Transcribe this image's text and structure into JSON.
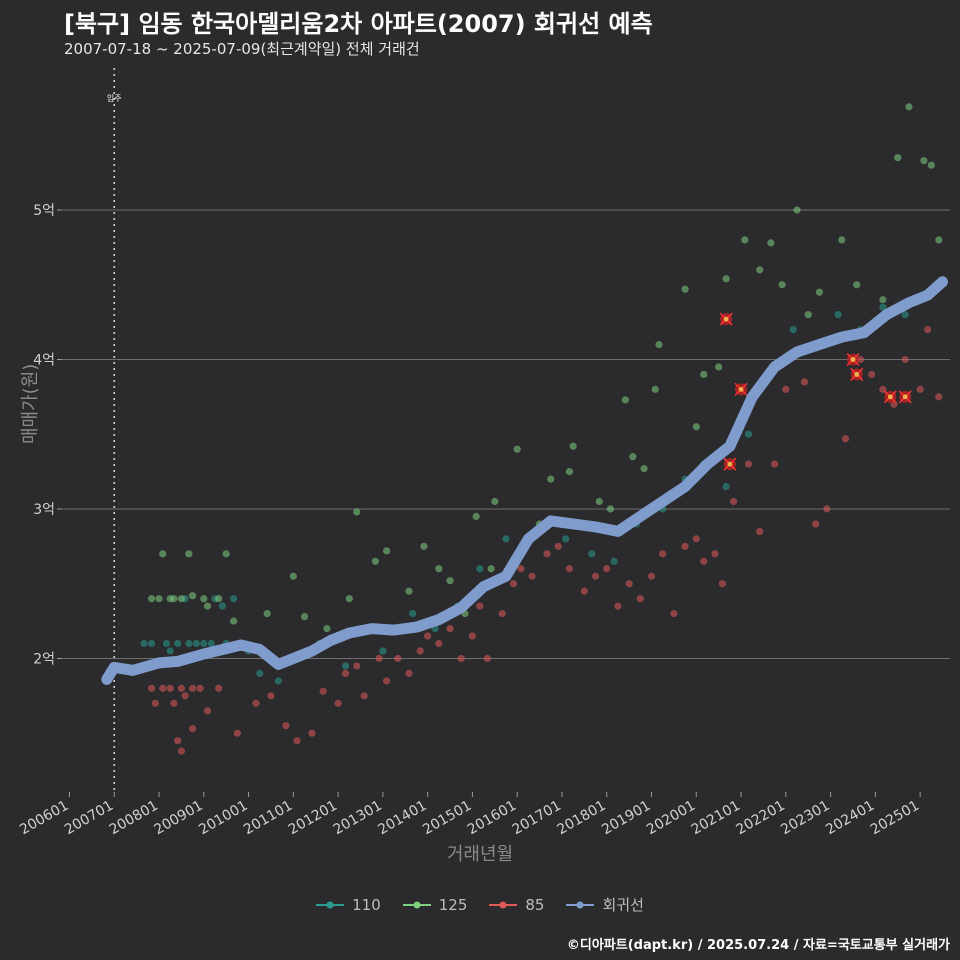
{
  "title": "[북구] 임동 한국아델리움2차 아파트(2007) 회귀선 예측",
  "subtitle": "2007-07-18 ~ 2025-07-09(최근계약일) 전체 거래건",
  "source": "©디아파트(dapt.kr) / 2025.07.24 / 자료=국토교통부 실거래가",
  "colors": {
    "s110": "#2a9d8f",
    "s125": "#7ed07e",
    "s85": "#e05a5a",
    "regression": "#7f9ccc",
    "cancel": "#cc2222"
  },
  "chart_data": {
    "type": "scatter",
    "xlabel": "거래년월",
    "ylabel": "매매가(원)",
    "x_range": [
      "2005-11",
      "2025-09"
    ],
    "y_range": [
      1.12,
      5.95
    ],
    "y_unit": "억",
    "yticks": [
      {
        "value": 2,
        "label": "2억"
      },
      {
        "value": 3,
        "label": "3억"
      },
      {
        "value": 4,
        "label": "4억"
      },
      {
        "value": 5,
        "label": "5억"
      }
    ],
    "xticks": [
      "200601",
      "200701",
      "200801",
      "200901",
      "201001",
      "201101",
      "201201",
      "201301",
      "201401",
      "201501",
      "201601",
      "201701",
      "201801",
      "201901",
      "202001",
      "202101",
      "202201",
      "202301",
      "202401",
      "202501"
    ],
    "annotation": {
      "label": "입주",
      "date": "2007-01"
    },
    "grid": true,
    "legend_position": "bottom",
    "legend": [
      "110",
      "125",
      "85",
      "회귀선"
    ],
    "series": [
      {
        "name": "110",
        "color": "#2a9d8f",
        "points": [
          [
            "2007-09",
            2.1
          ],
          [
            "2007-11",
            2.1
          ],
          [
            "2008-03",
            2.1
          ],
          [
            "2008-04",
            2.05
          ],
          [
            "2008-06",
            2.1
          ],
          [
            "2008-08",
            2.4
          ],
          [
            "2008-09",
            2.1
          ],
          [
            "2008-11",
            2.1
          ],
          [
            "2009-01",
            2.1
          ],
          [
            "2009-03",
            2.1
          ],
          [
            "2009-04",
            2.4
          ],
          [
            "2009-06",
            2.35
          ],
          [
            "2009-07",
            2.1
          ],
          [
            "2009-09",
            2.4
          ],
          [
            "2010-01",
            2.05
          ],
          [
            "2010-04",
            1.9
          ],
          [
            "2010-09",
            1.85
          ],
          [
            "2011-02",
            2.0
          ],
          [
            "2011-08",
            2.1
          ],
          [
            "2012-03",
            1.95
          ],
          [
            "2013-01",
            2.05
          ],
          [
            "2013-09",
            2.3
          ],
          [
            "2014-03",
            2.2
          ],
          [
            "2014-09",
            2.35
          ],
          [
            "2015-03",
            2.6
          ],
          [
            "2015-10",
            2.8
          ],
          [
            "2016-06",
            2.85
          ],
          [
            "2017-02",
            2.8
          ],
          [
            "2017-09",
            2.7
          ],
          [
            "2018-03",
            2.65
          ],
          [
            "2018-09",
            2.9
          ],
          [
            "2019-04",
            3.0
          ],
          [
            "2019-10",
            3.2
          ],
          [
            "2020-03",
            3.3
          ],
          [
            "2020-09",
            3.15
          ],
          [
            "2021-03",
            3.5
          ],
          [
            "2021-09",
            3.9
          ],
          [
            "2022-03",
            4.2
          ],
          [
            "2022-09",
            4.1
          ],
          [
            "2023-03",
            4.3
          ],
          [
            "2023-09",
            4.2
          ],
          [
            "2024-03",
            4.35
          ],
          [
            "2024-09",
            4.3
          ]
        ]
      },
      {
        "name": "125",
        "color": "#7ed07e",
        "points": [
          [
            "2007-11",
            2.4
          ],
          [
            "2008-01",
            2.4
          ],
          [
            "2008-02",
            2.7
          ],
          [
            "2008-04",
            2.4
          ],
          [
            "2008-05",
            2.4
          ],
          [
            "2008-07",
            2.4
          ],
          [
            "2008-09",
            2.7
          ],
          [
            "2008-10",
            2.42
          ],
          [
            "2009-01",
            2.4
          ],
          [
            "2009-02",
            2.35
          ],
          [
            "2009-05",
            2.4
          ],
          [
            "2009-07",
            2.7
          ],
          [
            "2009-09",
            2.25
          ],
          [
            "2010-06",
            2.3
          ],
          [
            "2011-01",
            2.55
          ],
          [
            "2011-04",
            2.28
          ],
          [
            "2011-10",
            2.2
          ],
          [
            "2012-04",
            2.4
          ],
          [
            "2012-06",
            2.98
          ],
          [
            "2012-08",
            2.2
          ],
          [
            "2012-11",
            2.65
          ],
          [
            "2013-02",
            2.72
          ],
          [
            "2013-08",
            2.45
          ],
          [
            "2013-12",
            2.75
          ],
          [
            "2014-04",
            2.6
          ],
          [
            "2014-07",
            2.52
          ],
          [
            "2014-11",
            2.3
          ],
          [
            "2015-02",
            2.95
          ],
          [
            "2015-06",
            2.6
          ],
          [
            "2015-07",
            3.05
          ],
          [
            "2016-01",
            3.4
          ],
          [
            "2016-07",
            2.9
          ],
          [
            "2016-10",
            3.2
          ],
          [
            "2017-03",
            3.25
          ],
          [
            "2017-04",
            3.42
          ],
          [
            "2017-11",
            3.05
          ],
          [
            "2018-02",
            3.0
          ],
          [
            "2018-06",
            3.73
          ],
          [
            "2018-08",
            3.35
          ],
          [
            "2018-11",
            3.27
          ],
          [
            "2019-02",
            3.8
          ],
          [
            "2019-03",
            4.1
          ],
          [
            "2019-06",
            3.1
          ],
          [
            "2019-10",
            4.47
          ],
          [
            "2020-01",
            3.55
          ],
          [
            "2020-03",
            3.9
          ],
          [
            "2020-07",
            3.95
          ],
          [
            "2020-09",
            4.54
          ],
          [
            "2021-02",
            4.8
          ],
          [
            "2021-06",
            4.6
          ],
          [
            "2021-09",
            4.78
          ],
          [
            "2021-12",
            4.5
          ],
          [
            "2022-04",
            5.0
          ],
          [
            "2022-07",
            4.3
          ],
          [
            "2022-10",
            4.45
          ],
          [
            "2023-04",
            4.8
          ],
          [
            "2023-08",
            4.5
          ],
          [
            "2024-03",
            4.4
          ],
          [
            "2024-07",
            5.35
          ],
          [
            "2024-10",
            5.69
          ],
          [
            "2025-02",
            5.33
          ],
          [
            "2025-04",
            5.3
          ],
          [
            "2025-06",
            4.8
          ]
        ]
      },
      {
        "name": "85",
        "color": "#e05a5a",
        "points": [
          [
            "2007-11",
            1.8
          ],
          [
            "2007-12",
            1.7
          ],
          [
            "2008-02",
            1.8
          ],
          [
            "2008-04",
            1.8
          ],
          [
            "2008-05",
            1.7
          ],
          [
            "2008-07",
            1.8
          ],
          [
            "2008-08",
            1.75
          ],
          [
            "2008-10",
            1.8
          ],
          [
            "2008-12",
            1.8
          ],
          [
            "2008-06",
            1.45
          ],
          [
            "2008-07",
            1.38
          ],
          [
            "2008-10",
            1.53
          ],
          [
            "2009-02",
            1.65
          ],
          [
            "2009-05",
            1.8
          ],
          [
            "2009-10",
            1.5
          ],
          [
            "2010-03",
            1.7
          ],
          [
            "2010-07",
            1.75
          ],
          [
            "2010-11",
            1.55
          ],
          [
            "2011-02",
            1.45
          ],
          [
            "2011-06",
            1.5
          ],
          [
            "2011-09",
            1.78
          ],
          [
            "2012-01",
            1.7
          ],
          [
            "2012-03",
            1.9
          ],
          [
            "2012-06",
            1.95
          ],
          [
            "2012-08",
            1.75
          ],
          [
            "2012-12",
            2.0
          ],
          [
            "2013-02",
            1.85
          ],
          [
            "2013-05",
            2.0
          ],
          [
            "2013-08",
            1.9
          ],
          [
            "2013-11",
            2.05
          ],
          [
            "2014-01",
            2.15
          ],
          [
            "2014-04",
            2.1
          ],
          [
            "2014-07",
            2.2
          ],
          [
            "2014-10",
            2.0
          ],
          [
            "2015-01",
            2.15
          ],
          [
            "2015-03",
            2.35
          ],
          [
            "2015-05",
            2.0
          ],
          [
            "2015-09",
            2.3
          ],
          [
            "2015-12",
            2.5
          ],
          [
            "2016-02",
            2.6
          ],
          [
            "2016-05",
            2.55
          ],
          [
            "2016-09",
            2.7
          ],
          [
            "2016-12",
            2.75
          ],
          [
            "2017-03",
            2.6
          ],
          [
            "2017-07",
            2.45
          ],
          [
            "2017-10",
            2.55
          ],
          [
            "2018-01",
            2.6
          ],
          [
            "2018-04",
            2.35
          ],
          [
            "2018-07",
            2.5
          ],
          [
            "2018-10",
            2.4
          ],
          [
            "2019-01",
            2.55
          ],
          [
            "2019-04",
            2.7
          ],
          [
            "2019-07",
            2.3
          ],
          [
            "2019-10",
            2.75
          ],
          [
            "2020-01",
            2.8
          ],
          [
            "2020-03",
            2.65
          ],
          [
            "2020-06",
            2.7
          ],
          [
            "2020-08",
            2.5
          ],
          [
            "2020-11",
            3.05
          ],
          [
            "2021-03",
            3.3
          ],
          [
            "2021-06",
            2.85
          ],
          [
            "2021-10",
            3.3
          ],
          [
            "2022-01",
            3.8
          ],
          [
            "2022-06",
            3.85
          ],
          [
            "2022-09",
            2.9
          ],
          [
            "2022-12",
            3.0
          ],
          [
            "2023-05",
            3.47
          ],
          [
            "2023-09",
            4.0
          ],
          [
            "2023-12",
            3.9
          ],
          [
            "2024-03",
            3.8
          ],
          [
            "2024-06",
            3.7
          ],
          [
            "2024-09",
            4.0
          ],
          [
            "2025-01",
            3.8
          ],
          [
            "2025-03",
            4.2
          ],
          [
            "2025-06",
            3.75
          ]
        ]
      }
    ],
    "cancelled": [
      [
        "2020-09",
        4.27
      ],
      [
        "2021-01",
        3.8
      ],
      [
        "2020-10",
        3.3
      ],
      [
        "2023-07",
        4.0
      ],
      [
        "2023-08",
        3.9
      ],
      [
        "2024-05",
        3.75
      ],
      [
        "2024-09",
        3.75
      ]
    ],
    "regression": [
      [
        "2006-11",
        1.86
      ],
      [
        "2007-01",
        1.94
      ],
      [
        "2007-06",
        1.92
      ],
      [
        "2008-01",
        1.97
      ],
      [
        "2008-06",
        1.98
      ],
      [
        "2009-01",
        2.03
      ],
      [
        "2009-06",
        2.06
      ],
      [
        "2009-11",
        2.09
      ],
      [
        "2010-04",
        2.06
      ],
      [
        "2010-09",
        1.96
      ],
      [
        "2011-01",
        2.0
      ],
      [
        "2011-06",
        2.05
      ],
      [
        "2011-11",
        2.12
      ],
      [
        "2012-04",
        2.17
      ],
      [
        "2012-10",
        2.2
      ],
      [
        "2013-04",
        2.19
      ],
      [
        "2013-10",
        2.21
      ],
      [
        "2014-04",
        2.26
      ],
      [
        "2014-10",
        2.34
      ],
      [
        "2015-04",
        2.48
      ],
      [
        "2015-10",
        2.55
      ],
      [
        "2016-04",
        2.8
      ],
      [
        "2016-10",
        2.92
      ],
      [
        "2017-04",
        2.9
      ],
      [
        "2017-10",
        2.88
      ],
      [
        "2018-04",
        2.85
      ],
      [
        "2018-10",
        2.95
      ],
      [
        "2019-04",
        3.05
      ],
      [
        "2019-10",
        3.15
      ],
      [
        "2020-04",
        3.3
      ],
      [
        "2020-10",
        3.42
      ],
      [
        "2021-04",
        3.75
      ],
      [
        "2021-10",
        3.95
      ],
      [
        "2022-04",
        4.05
      ],
      [
        "2022-10",
        4.1
      ],
      [
        "2023-04",
        4.15
      ],
      [
        "2023-10",
        4.18
      ],
      [
        "2024-04",
        4.3
      ],
      [
        "2024-10",
        4.38
      ],
      [
        "2025-03",
        4.43
      ],
      [
        "2025-07",
        4.52
      ]
    ]
  }
}
